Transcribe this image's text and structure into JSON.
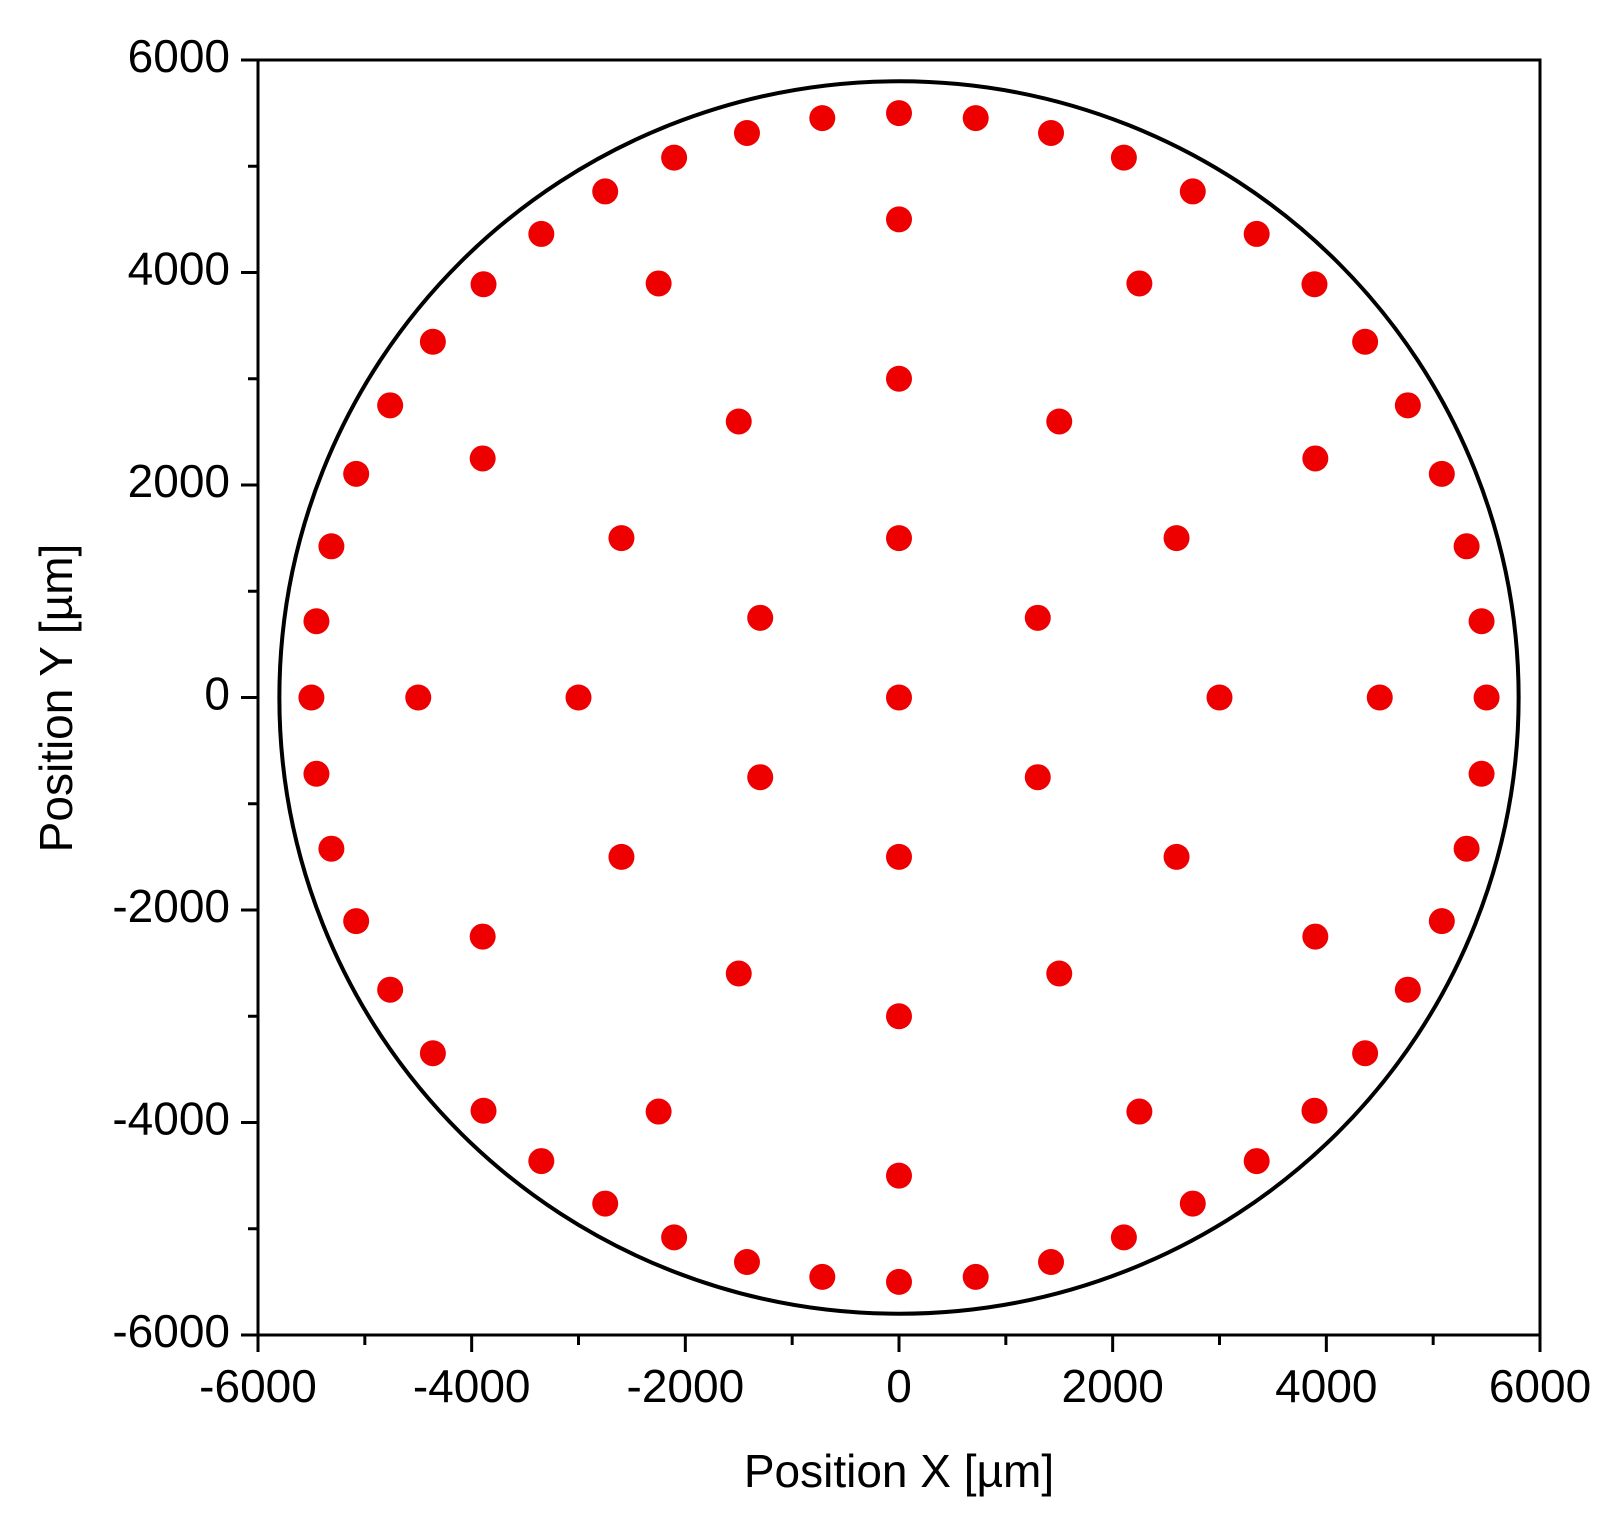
{
  "chart_data": {
    "type": "scatter",
    "x_label": "Position X [µm]",
    "y_label": "Position Y [µm]",
    "color": "#ee0000",
    "x": [
      5500,
      5453,
      5313,
      5081,
      4763,
      4363,
      3889,
      3348,
      2750,
      2105,
      1423,
      718,
      0,
      -718,
      -1423,
      -2105,
      -2750,
      -3348,
      -3889,
      -4363,
      -4763,
      -5081,
      -5313,
      -5453,
      -5500,
      -5453,
      -5313,
      -5081,
      -4763,
      -4363,
      -3889,
      -3348,
      -2750,
      -2105,
      -1423,
      -718,
      0,
      718,
      1423,
      2105,
      2750,
      3348,
      3889,
      4363,
      4763,
      5081,
      5313,
      5453,
      4500,
      3897,
      2250,
      0,
      -2250,
      -3897,
      -4500,
      -3897,
      -2250,
      0,
      2250,
      3897,
      3000,
      2598,
      1500,
      0,
      -1500,
      -2598,
      -3000,
      -2598,
      -1500,
      0,
      1500,
      2598,
      1299,
      0,
      -1299,
      -1299,
      0,
      1299,
      0
    ],
    "values": [
      0,
      718,
      1423,
      2105,
      2750,
      3348,
      3889,
      4363,
      4763,
      5081,
      5313,
      5453,
      5500,
      5453,
      5313,
      5081,
      4763,
      4363,
      3889,
      3348,
      2750,
      2105,
      1423,
      718,
      0,
      -718,
      -1423,
      -2105,
      -2750,
      -3348,
      -3889,
      -4363,
      -4763,
      -5081,
      -5313,
      -5453,
      -5500,
      -5453,
      -5313,
      -5081,
      -4763,
      -4363,
      -3889,
      -3348,
      -2750,
      -2105,
      -1423,
      -718,
      0,
      2250,
      3897,
      4500,
      3897,
      2250,
      0,
      -2250,
      -3897,
      -4500,
      -3897,
      -2250,
      0,
      1500,
      2598,
      3000,
      2598,
      1500,
      0,
      -1500,
      -2598,
      -3000,
      -2598,
      -1500,
      750,
      1500,
      750,
      -750,
      -1500,
      -750,
      0
    ],
    "boundary_circle": {
      "center": [
        0,
        0
      ],
      "radius": 5800,
      "color": "#000000"
    },
    "xlim": [
      -6000,
      6000
    ],
    "ylim": [
      -6000,
      6000
    ],
    "xticks": [
      -6000,
      -4000,
      -2000,
      0,
      2000,
      4000,
      6000
    ],
    "yticks": [
      -6000,
      -4000,
      -2000,
      0,
      2000,
      4000,
      6000
    ],
    "xminorticks": [
      -5000,
      -3000,
      -1000,
      1000,
      3000,
      5000
    ],
    "yminorticks": [
      -5000,
      -3000,
      -1000,
      1000,
      3000,
      5000
    ]
  }
}
